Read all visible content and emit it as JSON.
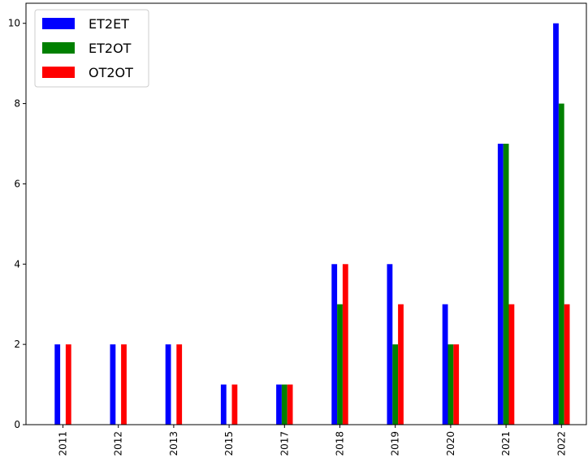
{
  "chart_data": {
    "type": "bar",
    "categories": [
      "2011",
      "2012",
      "2013",
      "2015",
      "2017",
      "2018",
      "2019",
      "2020",
      "2021",
      "2022"
    ],
    "series": [
      {
        "name": "ET2ET",
        "color": "#0000ff",
        "values": [
          2,
          2,
          2,
          1,
          1,
          4,
          4,
          3,
          7,
          10
        ]
      },
      {
        "name": "ET2OT",
        "color": "#008000",
        "values": [
          0,
          0,
          0,
          0,
          1,
          3,
          2,
          2,
          7,
          8
        ]
      },
      {
        "name": "OT2OT",
        "color": "#ff0000",
        "values": [
          2,
          2,
          2,
          1,
          1,
          4,
          3,
          2,
          3,
          3
        ]
      }
    ],
    "ylim": [
      0,
      10.5
    ],
    "yticks": [
      "0",
      "2",
      "4",
      "6",
      "8",
      "10"
    ],
    "legend_position": "top-left",
    "grid": false
  }
}
